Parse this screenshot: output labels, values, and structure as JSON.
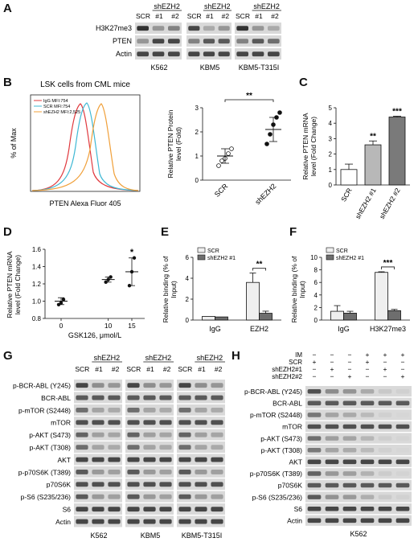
{
  "panels": {
    "A": {
      "letter": "A",
      "groups": [
        {
          "name": "K562",
          "header": "shEZH2",
          "lanes": [
            "SCR",
            "#1",
            "#2"
          ]
        },
        {
          "name": "KBM5",
          "header": "shEZH2",
          "lanes": [
            "SCR",
            "#1",
            "#2"
          ]
        },
        {
          "name": "KBM5-T315I",
          "header": "shEZH2",
          "lanes": [
            "SCR",
            "#1",
            "#2"
          ]
        }
      ],
      "rows": [
        "H3K27me3",
        "PTEN",
        "Actin"
      ]
    },
    "B": {
      "letter": "B",
      "flow_title": "LSK cells from CML mice",
      "flow_legend": [
        "IgG MFI:754",
        "SCR MFI:754",
        "shEZH2 MFI:2,525"
      ],
      "flow_ylabel": "% of Max",
      "flow_xlabel": "PTEN Alexa Fluor 405",
      "chart_data": {
        "type": "scatter",
        "categories": [
          "SCR",
          "shEZH2"
        ],
        "ylabel": "Relative PTEN Protein level (Fold)",
        "ylim": [
          0,
          3
        ],
        "yticks": [
          "0",
          "1",
          "2",
          "3"
        ],
        "points": {
          "SCR": [
            0.6,
            0.8,
            0.9,
            1.1,
            1.3
          ],
          "shEZH2": [
            1.5,
            1.9,
            2.3,
            2.6,
            2.8
          ]
        },
        "mean": [
          1.0,
          2.1
        ],
        "sd": [
          0.3,
          0.5
        ],
        "significance": "**"
      }
    },
    "C": {
      "letter": "C",
      "chart_data": {
        "type": "bar",
        "categories": [
          "SCR",
          "shEZH2 #1",
          "shEZH2 #2"
        ],
        "values": [
          1.0,
          2.6,
          4.4
        ],
        "errors": [
          0.35,
          0.25,
          0.05
        ],
        "significance": [
          "",
          "**",
          "***"
        ],
        "ylabel": "Relative PTEN mRNA level (Fold Change)",
        "ylim": [
          0,
          5
        ],
        "yticks": [
          "0",
          "1",
          "2",
          "3",
          "4",
          "5"
        ]
      }
    },
    "D": {
      "letter": "D",
      "chart_data": {
        "type": "scatter",
        "x": [
          0,
          10,
          15
        ],
        "points": [
          [
            0.96,
            0.98,
            1.02
          ],
          [
            1.22,
            1.25,
            1.28
          ],
          [
            1.18,
            1.34,
            1.5
          ]
        ],
        "mean": [
          1.0,
          1.25,
          1.34
        ],
        "sd": [
          0.04,
          0.03,
          0.16
        ],
        "significance": [
          "",
          "",
          "*"
        ],
        "ylabel": "Relative PTEN mRNA level (Fold Change)",
        "xlabel": "GSK126, μmol/L",
        "ylim": [
          0.8,
          1.6
        ],
        "yticks": [
          "0.8",
          "1.0",
          "1.2",
          "1.4",
          "1.6"
        ],
        "xticks": [
          "0",
          "10",
          "15"
        ]
      }
    },
    "E": {
      "letter": "E",
      "chart_data": {
        "type": "bar",
        "categories": [
          "IgG",
          "EZH2"
        ],
        "series": [
          {
            "name": "SCR",
            "values": [
              0.35,
              3.6
            ],
            "errors": [
              0.0,
              0.9
            ]
          },
          {
            "name": "shEZH2 #1",
            "values": [
              0.3,
              0.65
            ],
            "errors": [
              0.0,
              0.2
            ]
          }
        ],
        "significance": "**",
        "ylabel": "Relative binding (% of Input)",
        "ylim": [
          0,
          6
        ],
        "yticks": [
          "0",
          "2",
          "4",
          "6"
        ]
      }
    },
    "F": {
      "letter": "F",
      "chart_data": {
        "type": "bar",
        "categories": [
          "IgG",
          "H3K27me3"
        ],
        "series": [
          {
            "name": "SCR",
            "values": [
              1.4,
              7.6
            ],
            "errors": [
              0.9,
              0.1
            ]
          },
          {
            "name": "shEZH2 #1",
            "values": [
              1.1,
              1.5
            ],
            "errors": [
              0.3,
              0.2
            ]
          }
        ],
        "significance": "***",
        "ylabel": "Relative binding (% of Input)",
        "ylim": [
          0,
          10
        ],
        "yticks": [
          "0",
          "2",
          "4",
          "6",
          "8",
          "10"
        ]
      }
    },
    "G": {
      "letter": "G",
      "groups": [
        {
          "name": "K562",
          "header": "shEZH2",
          "lanes": [
            "SCR",
            "#1",
            "#2"
          ]
        },
        {
          "name": "KBM5",
          "header": "shEZH2",
          "lanes": [
            "SCR",
            "#1",
            "#2"
          ]
        },
        {
          "name": "KBM5-T315I",
          "header": "shEZH2",
          "lanes": [
            "SCR",
            "#1",
            "#2"
          ]
        }
      ],
      "rows": [
        "p-BCR-ABL (Y245)",
        "BCR-ABL",
        "p-mTOR (S2448)",
        "mTOR",
        "p-AKT (S473)",
        "p-AKT (T308)",
        "AKT",
        "p-p70S6K (T389)",
        "p70S6K",
        "p-S6 (S235/236)",
        "S6",
        "Actin"
      ]
    },
    "H": {
      "letter": "H",
      "conditions": [
        {
          "label": "IM",
          "marks": [
            "−",
            "−",
            "−",
            "+",
            "+",
            "+"
          ]
        },
        {
          "label": "SCR",
          "marks": [
            "+",
            "−",
            "−",
            "+",
            "−",
            "−"
          ]
        },
        {
          "label": "shEZH2#1",
          "marks": [
            "−",
            "+",
            "−",
            "−",
            "+",
            "−"
          ]
        },
        {
          "label": "shEZH2#2",
          "marks": [
            "−",
            "−",
            "+",
            "−",
            "−",
            "+"
          ]
        }
      ],
      "rows": [
        "p-BCR-ABL (Y245)",
        "BCR-ABL",
        "p-mTOR (S2448)",
        "mTOR",
        "p-AKT (S473)",
        "p-AKT (T308)",
        "AKT",
        "p-p70S6K (T389)",
        "p70S6K",
        "p-S6 (S235/236)",
        "S6",
        "Actin"
      ],
      "cell_line": "K562"
    }
  }
}
